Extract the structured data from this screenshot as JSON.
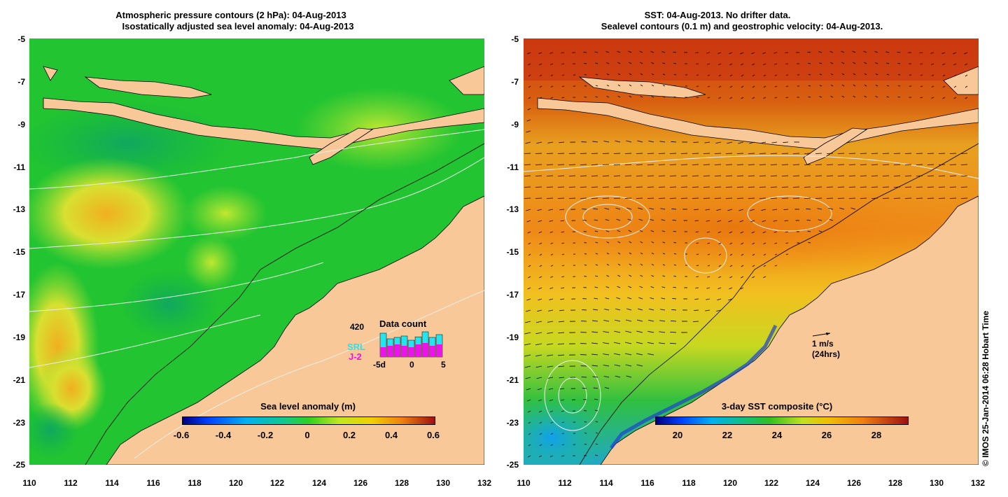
{
  "left_panel": {
    "title_line1": "Atmospheric pressure contours (2 hPa): 04-Aug-2013",
    "title_line2": "Isostatically adjusted sea level anomaly: 04-Aug-2013",
    "colorbar": {
      "title": "Sea level anomaly (m)",
      "ticks": [
        "-0.6",
        "-0.4",
        "-0.2",
        "0",
        "0.2",
        "0.4",
        "0.6"
      ],
      "range": [
        -0.6,
        0.6
      ]
    },
    "inset": {
      "count": "420",
      "title": "Data count",
      "srl_label": "SRL",
      "j2_label": "J-2",
      "xticks": [
        "-5d",
        "0",
        "5"
      ],
      "srl_color": "#22e5f0",
      "j2_color": "#ee10ee",
      "srl_bars": [
        0.85,
        0.65,
        0.7,
        0.75,
        0.6,
        0.72,
        0.9,
        0.7,
        0.8
      ],
      "j2_bars": [
        0.35,
        0.4,
        0.45,
        0.4,
        0.35,
        0.45,
        0.5,
        0.4,
        0.45
      ]
    }
  },
  "right_panel": {
    "title_line1": "SST: 04-Aug-2013. No drifter data.",
    "title_line2": "Sealevel contours (0.1 m) and geostrophic velocity: 04-Aug-2013.",
    "colorbar": {
      "title": "3-day SST composite (°C)",
      "ticks": [
        "20",
        "22",
        "24",
        "26",
        "28"
      ],
      "range": [
        19,
        29
      ]
    },
    "velocity_scale_line1": "1 m/s",
    "velocity_scale_line2": "(24hrs)"
  },
  "axes": {
    "x_ticks": [
      "110",
      "112",
      "114",
      "116",
      "118",
      "120",
      "122",
      "124",
      "126",
      "128",
      "130",
      "132"
    ],
    "y_ticks": [
      "-5",
      "-7",
      "-9",
      "-11",
      "-13",
      "-15",
      "-17",
      "-19",
      "-21",
      "-23",
      "-25"
    ],
    "lon_range": [
      110,
      132
    ],
    "lat_range": [
      -25,
      -5
    ]
  },
  "copyright": "© IMOS 25-Jan-2014 06:28 Hobart Time",
  "colors": {
    "land": "#f8c898",
    "ocean_left": "#22c432",
    "ocean_right": "#f29a18"
  }
}
